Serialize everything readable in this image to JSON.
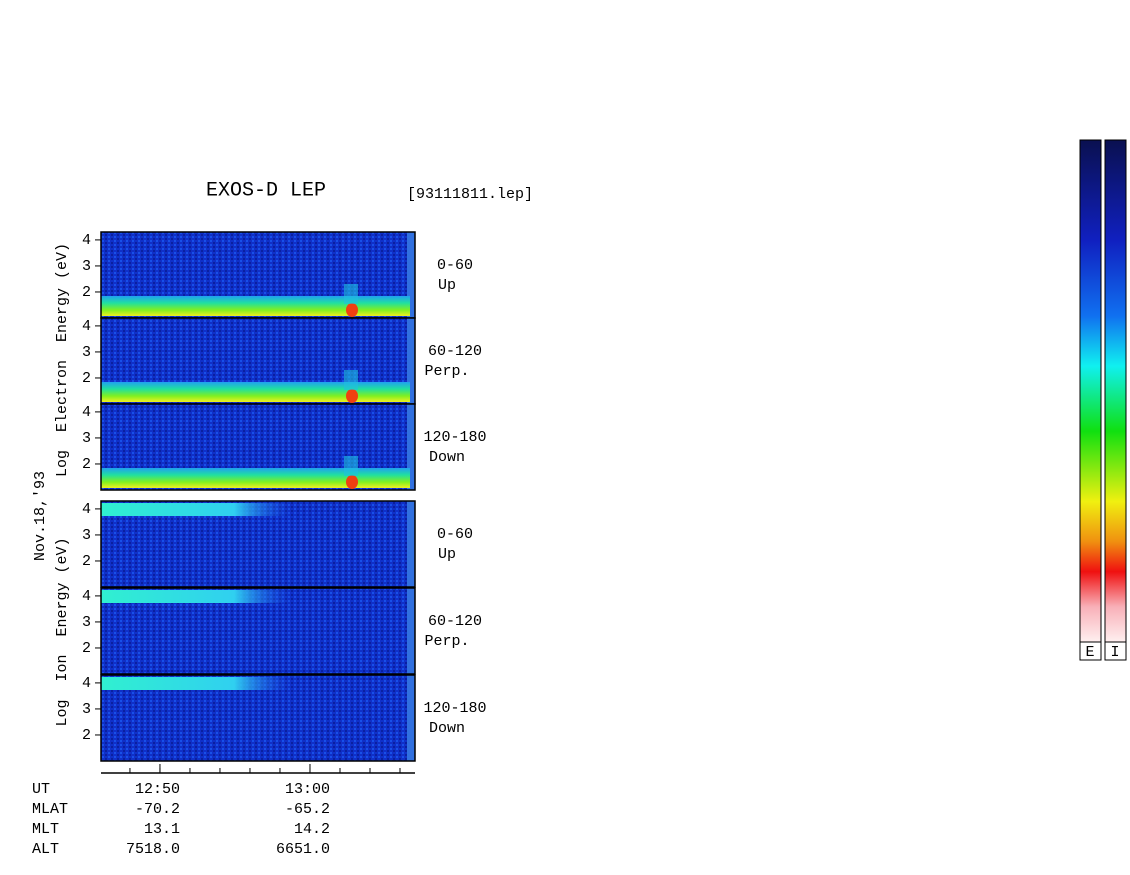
{
  "title": "EXOS-D LEP",
  "file": "[93111811.lep]",
  "date": "Nov.18,'93",
  "electron": {
    "ylabel": "Log  Electron  Energy (eV)",
    "ylim": [
      1,
      4.15
    ],
    "yticks": [
      2,
      3,
      4
    ],
    "panels": [
      {
        "angle": "0-60",
        "direction": "Up"
      },
      {
        "angle": "60-120",
        "direction": "Perp."
      },
      {
        "angle": "120-180",
        "direction": "Down"
      }
    ]
  },
  "ion": {
    "ylabel": "Log  Ion  Energy (eV)",
    "ylim": [
      1,
      4.15
    ],
    "yticks": [
      2,
      3,
      4
    ],
    "panels": [
      {
        "angle": "0-60",
        "direction": "Up"
      },
      {
        "angle": "60-120",
        "direction": "Perp."
      },
      {
        "angle": "120-180",
        "direction": "Down"
      }
    ]
  },
  "time_axis": {
    "label": "UT",
    "xlim": [
      766.07,
      787
    ],
    "xticks": [
      {
        "value": 770,
        "label": "12:50"
      },
      {
        "value": 780,
        "label": "13:00"
      }
    ]
  },
  "orbit_rows": [
    {
      "label": "MLAT",
      "values": [
        "-70.2",
        "-65.2"
      ]
    },
    {
      "label": "MLT",
      "values": [
        "13.1",
        "14.2"
      ]
    },
    {
      "label": "ALT",
      "values": [
        "7518.0",
        "6651.0"
      ]
    }
  ],
  "colorbars": [
    "E",
    "I"
  ]
}
